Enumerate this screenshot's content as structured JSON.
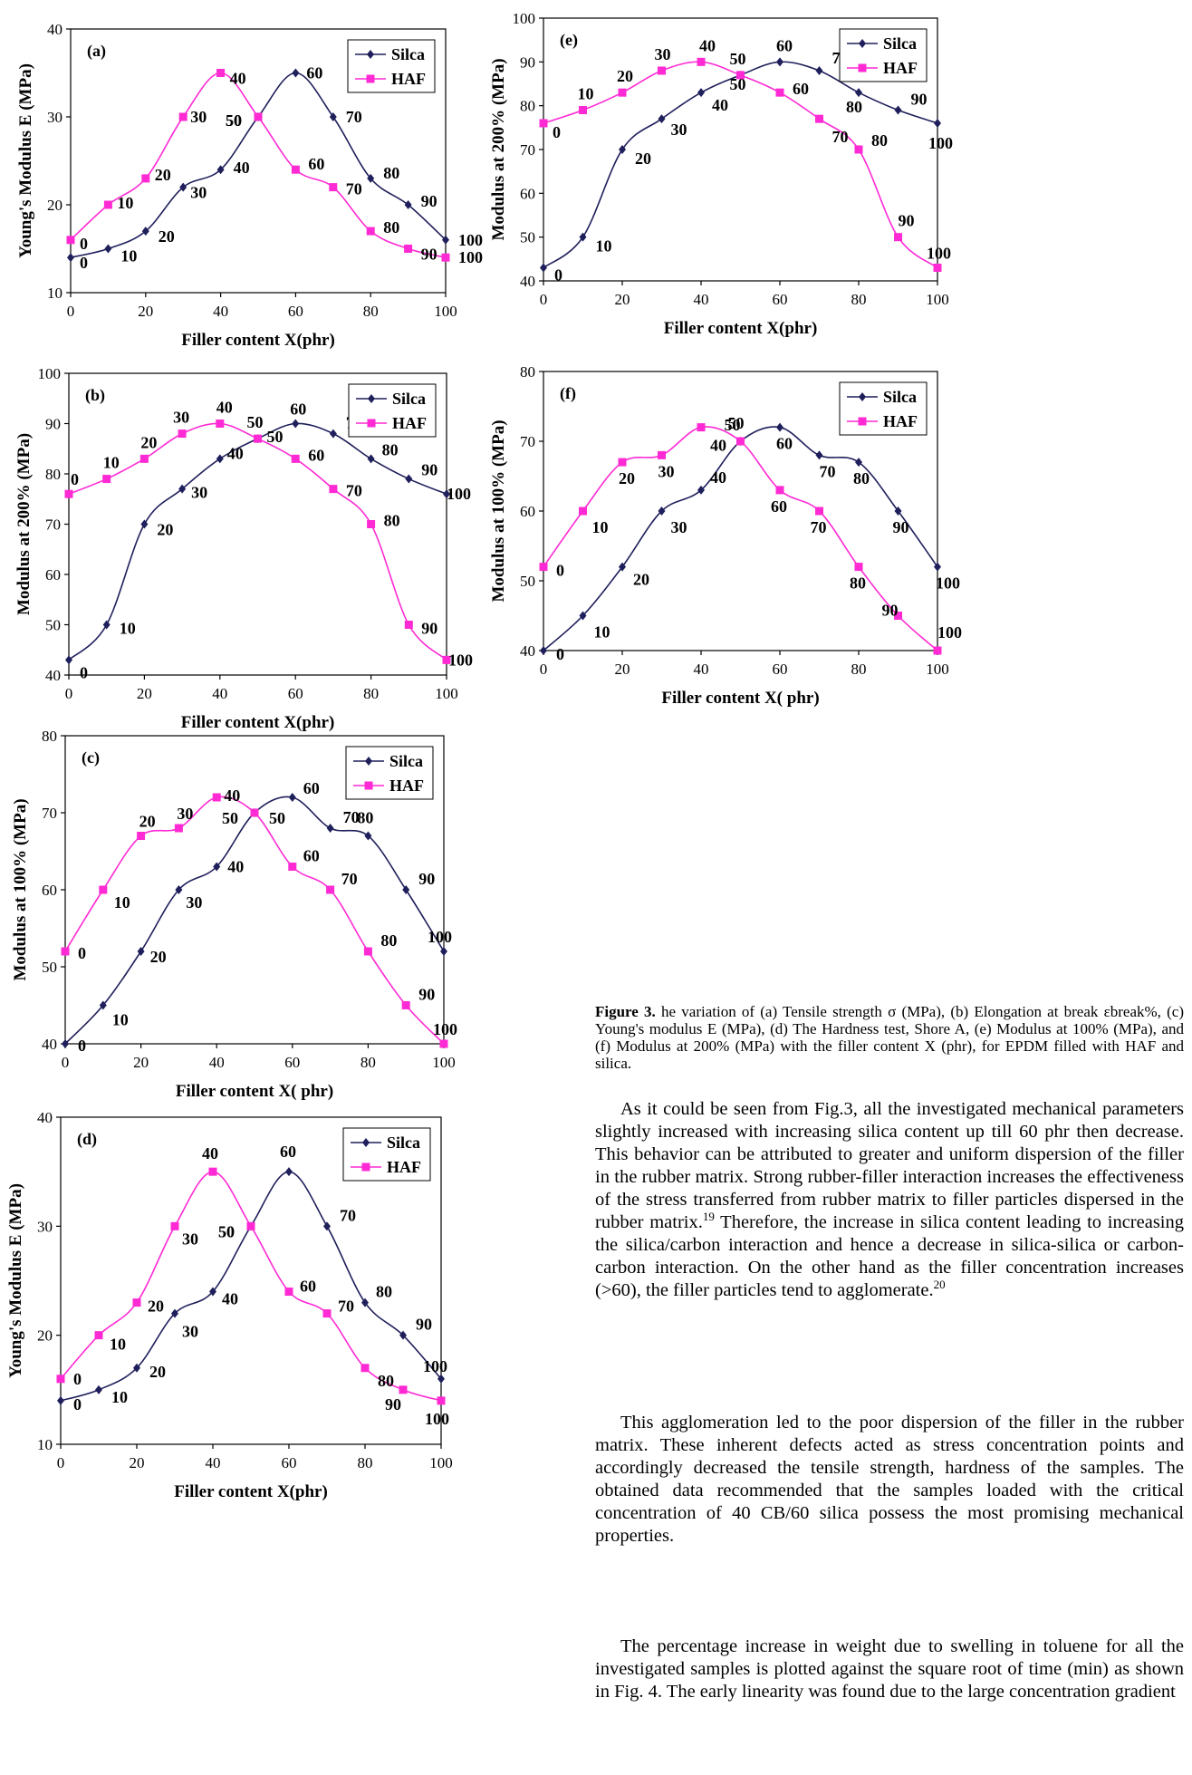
{
  "legend": {
    "silica": "Silca",
    "haf": "HAF"
  },
  "colors": {
    "silica": "#1f1f5c",
    "haf": "#ff2ad4"
  },
  "chart_data": [
    {
      "id": "a",
      "tag": "(a)",
      "type": "line",
      "ylabel": "Young's  Modulus  E (MPa)",
      "xlabel": "Filler content  X(phr)",
      "xlim": [
        0,
        100
      ],
      "ylim": [
        10,
        40
      ],
      "xticks": [
        0,
        20,
        40,
        60,
        80,
        100
      ],
      "yticks": [
        10,
        20,
        30,
        40
      ],
      "x": [
        0,
        10,
        20,
        30,
        40,
        50,
        60,
        70,
        80,
        90,
        100
      ],
      "series": [
        {
          "name": "Silca",
          "values": [
            14,
            15,
            17,
            22,
            24,
            30,
            35,
            30,
            23,
            20,
            16
          ]
        },
        {
          "name": "HAF",
          "values": [
            16,
            20,
            23,
            30,
            35,
            30,
            24,
            22,
            17,
            15,
            14
          ]
        }
      ],
      "point_labels": [
        "0",
        "10",
        "20",
        "30",
        "40",
        "50",
        "60",
        "70",
        "80",
        "90",
        "100"
      ],
      "legend_position": "top-right"
    },
    {
      "id": "b",
      "tag": "(b)",
      "type": "line",
      "ylabel": "Modulus  at 200% (MPa)",
      "xlabel": "Filler content  X(phr)",
      "xlim": [
        0,
        100
      ],
      "ylim": [
        40,
        100
      ],
      "xticks": [
        0,
        20,
        40,
        60,
        80,
        100
      ],
      "yticks": [
        40,
        50,
        60,
        70,
        80,
        90,
        100
      ],
      "x": [
        0,
        10,
        20,
        30,
        40,
        50,
        60,
        70,
        80,
        90,
        100
      ],
      "series": [
        {
          "name": "Silca",
          "values": [
            43,
            50,
            70,
            77,
            83,
            87,
            90,
            88,
            83,
            79,
            76
          ]
        },
        {
          "name": "HAF",
          "values": [
            76,
            79,
            83,
            88,
            90,
            87,
            83,
            77,
            70,
            50,
            43
          ]
        }
      ],
      "point_labels": [
        "0",
        "10",
        "20",
        "30",
        "40",
        "50",
        "60",
        "70",
        "80",
        "90",
        "100"
      ],
      "legend_position": "top-right"
    },
    {
      "id": "c",
      "tag": "(c)",
      "type": "line",
      "ylabel": "Modulus  at 100% (MPa)",
      "xlabel": "Filler content  X( phr)",
      "xlim": [
        0,
        100
      ],
      "ylim": [
        40,
        80
      ],
      "xticks": [
        0,
        20,
        40,
        60,
        80,
        100
      ],
      "yticks": [
        40,
        50,
        60,
        70,
        80
      ],
      "x": [
        0,
        10,
        20,
        30,
        40,
        50,
        60,
        70,
        80,
        90,
        100
      ],
      "series": [
        {
          "name": "Silca",
          "values": [
            40,
            45,
            52,
            60,
            63,
            70,
            72,
            68,
            67,
            60,
            52
          ]
        },
        {
          "name": "HAF",
          "values": [
            52,
            60,
            67,
            68,
            72,
            70,
            63,
            60,
            52,
            45,
            40
          ]
        }
      ],
      "point_labels": [
        "0",
        "10",
        "20",
        "30",
        "40",
        "50",
        "60",
        "70",
        "80",
        "90",
        "100"
      ],
      "legend_position": "top-right"
    },
    {
      "id": "d",
      "tag": "(d)",
      "type": "line",
      "ylabel": "Young's  Modulus  E (MPa)",
      "xlabel": "Filler content  X(phr)",
      "xlim": [
        0,
        100
      ],
      "ylim": [
        10,
        40
      ],
      "xticks": [
        0,
        20,
        40,
        60,
        80,
        100
      ],
      "yticks": [
        10,
        20,
        30,
        40
      ],
      "x": [
        0,
        10,
        20,
        30,
        40,
        50,
        60,
        70,
        80,
        90,
        100
      ],
      "series": [
        {
          "name": "Silca",
          "values": [
            14,
            15,
            17,
            22,
            24,
            30,
            35,
            30,
            23,
            20,
            16
          ]
        },
        {
          "name": "HAF",
          "values": [
            16,
            20,
            23,
            30,
            35,
            30,
            24,
            22,
            17,
            15,
            14
          ]
        }
      ],
      "point_labels": [
        "0",
        "10",
        "20",
        "30",
        "40",
        "50",
        "60",
        "70",
        "80",
        "90",
        "100"
      ],
      "legend_position": "top-right"
    },
    {
      "id": "e",
      "tag": "(e)",
      "type": "line",
      "ylabel": "Modulus  at 200% (MPa)",
      "xlabel": "Filler content  X(phr)",
      "xlim": [
        0,
        100
      ],
      "ylim": [
        40,
        100
      ],
      "xticks": [
        0,
        20,
        40,
        60,
        80,
        100
      ],
      "yticks": [
        40,
        50,
        60,
        70,
        80,
        90,
        100
      ],
      "x": [
        0,
        10,
        20,
        30,
        40,
        50,
        60,
        70,
        80,
        90,
        100
      ],
      "series": [
        {
          "name": "Silca",
          "values": [
            43,
            50,
            70,
            77,
            83,
            87,
            90,
            88,
            83,
            79,
            76
          ]
        },
        {
          "name": "HAF",
          "values": [
            76,
            79,
            83,
            88,
            90,
            87,
            83,
            77,
            70,
            50,
            43
          ]
        }
      ],
      "point_labels": [
        "0",
        "10",
        "20",
        "30",
        "40",
        "50",
        "60",
        "70",
        "80",
        "90",
        "100"
      ],
      "legend_position": "top-right"
    },
    {
      "id": "f",
      "tag": "(f)",
      "type": "line",
      "ylabel": "Modulus  at 100% (MPa)",
      "xlabel": "Filler content  X( phr)",
      "xlim": [
        0,
        100
      ],
      "ylim": [
        40,
        80
      ],
      "xticks": [
        0,
        20,
        40,
        60,
        80,
        100
      ],
      "yticks": [
        40,
        50,
        60,
        70,
        80
      ],
      "x": [
        0,
        10,
        20,
        30,
        40,
        50,
        60,
        70,
        80,
        90,
        100
      ],
      "series": [
        {
          "name": "Silca",
          "values": [
            40,
            45,
            52,
            60,
            63,
            70,
            72,
            68,
            67,
            60,
            52
          ]
        },
        {
          "name": "HAF",
          "values": [
            52,
            60,
            67,
            68,
            72,
            70,
            63,
            60,
            52,
            45,
            40
          ]
        }
      ],
      "point_labels": [
        "0",
        "10",
        "20",
        "30",
        "40",
        "50",
        "60",
        "70",
        "80",
        "90",
        "100"
      ],
      "legend_position": "top-right"
    }
  ],
  "caption": {
    "label": "Figure 3.",
    "text": " he variation of (a) Tensile strength σ (MPa), (b) Elongation at break εbreak%, (c) Young's modulus E (MPa), (d) The Hardness test, Shore A, (e) Modulus at 100%  (MPa), and (f) Modulus at 200% (MPa) with the filler content X (phr), for EPDM filled with HAF and silica."
  },
  "body": {
    "p1_a": "As it could be seen from Fig.3, all the investigated mechanical parameters slightly increased with increasing silica content up till 60 phr then decrease. This behavior can be attributed to greater and uniform dispersion of the filler in the rubber matrix. Strong rubber-filler interaction increases the effectiveness of the stress transferred from rubber matrix to filler particles dispersed in the rubber matrix.",
    "p1_ref1": "19",
    "p1_b": " Therefore, the increase in silica content leading to increasing the silica/carbon interaction and hence a decrease in silica-silica or carbon-carbon interaction. On the other hand as the filler concentration increases (>60), the filler particles tend to agglomerate.",
    "p1_ref2": "20",
    "p2": "This agglomeration led to the poor dispersion of the filler in the rubber matrix. These inherent defects acted as stress concentration points and accordingly decreased the tensile strength, hardness of the samples. The obtained data recommended that the samples loaded with the critical concentration of 40 CB/60 silica possess the most promising mechanical properties.",
    "p3": "The percentage increase in weight due to swelling in toluene for all the investigated samples is plotted against the square root of time (min) as shown in Fig. 4. The early linearity was found due to the large concentration gradient"
  }
}
